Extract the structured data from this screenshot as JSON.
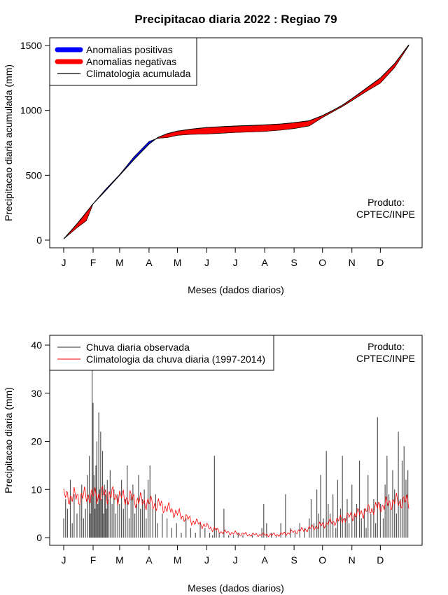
{
  "figure": {
    "title": "Precipitacao diaria 2022 : Regiao 79"
  },
  "colors": {
    "positive_anomaly": "#0000ff",
    "negative_anomaly": "#ff0000",
    "climatology_line": "#000000",
    "observed_bars": "#555555",
    "climatology_daily": "#ff0000"
  },
  "chart_data": [
    {
      "type": "area",
      "id": "accumulated",
      "ylabel": "Precipitacao diaria acumulada (mm)",
      "xlabel": "Meses (dados diarios)",
      "x_tick_labels": [
        "J",
        "F",
        "M",
        "A",
        "M",
        "J",
        "J",
        "A",
        "S",
        "O",
        "N",
        "D"
      ],
      "x_tick_days": [
        1,
        32,
        60,
        91,
        121,
        152,
        182,
        213,
        244,
        274,
        305,
        335
      ],
      "xlim": [
        1,
        365
      ],
      "ylim": [
        0,
        1500
      ],
      "y_ticks": [
        0,
        500,
        1000,
        1500
      ],
      "legend": [
        "Anomalias positivas",
        "Anomalias negativas",
        "Climatologia acumulada"
      ],
      "annotation": [
        "Produto:",
        "CPTEC/INPE"
      ],
      "x_days": [
        1,
        15,
        25,
        32,
        45,
        60,
        75,
        91,
        100,
        110,
        121,
        135,
        152,
        170,
        182,
        200,
        213,
        230,
        244,
        260,
        274,
        285,
        295,
        305,
        320,
        335,
        350,
        365
      ],
      "climatology": [
        9,
        125,
        215,
        280,
        380,
        500,
        620,
        740,
        790,
        820,
        840,
        855,
        868,
        875,
        879,
        884,
        888,
        895,
        905,
        920,
        960,
        1000,
        1040,
        1090,
        1170,
        1250,
        1360,
        1505
      ],
      "observed": [
        9,
        95,
        150,
        280,
        390,
        505,
        640,
        760,
        785,
        790,
        808,
        815,
        818,
        825,
        830,
        834,
        838,
        848,
        860,
        880,
        945,
        990,
        1030,
        1075,
        1145,
        1210,
        1330,
        1500
      ]
    },
    {
      "type": "bar",
      "id": "daily",
      "ylabel": "Precipitacao diaria (mm)",
      "xlabel": "Meses (dados diarios)",
      "x_tick_labels": [
        "J",
        "F",
        "M",
        "A",
        "M",
        "J",
        "J",
        "A",
        "S",
        "O",
        "N",
        "D"
      ],
      "x_tick_days": [
        1,
        32,
        60,
        91,
        121,
        152,
        182,
        213,
        244,
        274,
        305,
        335
      ],
      "xlim": [
        1,
        365
      ],
      "ylim": [
        0,
        40
      ],
      "y_ticks": [
        0,
        10,
        20,
        30,
        40
      ],
      "legend": [
        "Chuva diaria observada",
        "Climatologia da chuva diaria (1997-2014)"
      ],
      "annotation": [
        "Produto:",
        "CPTEC/INPE"
      ],
      "observed_days": [
        1,
        3,
        5,
        8,
        10,
        12,
        15,
        18,
        20,
        22,
        24,
        26,
        28,
        29,
        30,
        31,
        32,
        33,
        34,
        35,
        36,
        37,
        38,
        39,
        40,
        41,
        42,
        43,
        44,
        45,
        46,
        47,
        48,
        50,
        52,
        54,
        56,
        58,
        60,
        62,
        64,
        66,
        68,
        70,
        72,
        74,
        76,
        78,
        80,
        82,
        84,
        86,
        88,
        90,
        92,
        95,
        98,
        100,
        105,
        110,
        115,
        120,
        125,
        130,
        135,
        140,
        145,
        150,
        155,
        158,
        160,
        162,
        165,
        170,
        175,
        180,
        185,
        190,
        200,
        210,
        212,
        215,
        220,
        225,
        230,
        235,
        240,
        245,
        250,
        255,
        260,
        262,
        265,
        268,
        270,
        272,
        275,
        278,
        280,
        282,
        285,
        288,
        290,
        293,
        295,
        298,
        300,
        302,
        305,
        308,
        310,
        313,
        315,
        318,
        320,
        322,
        325,
        328,
        330,
        332,
        335,
        338,
        340,
        342,
        344,
        346,
        348,
        350,
        352,
        354,
        356,
        358,
        360,
        362,
        364
      ],
      "observed_values": [
        4,
        8,
        6,
        12,
        3,
        9,
        5,
        7,
        11,
        4,
        6,
        13,
        17,
        5,
        9,
        35,
        28,
        13,
        6,
        15,
        20,
        7,
        26,
        10,
        22,
        8,
        18,
        5,
        11,
        9,
        6,
        12,
        8,
        14,
        7,
        10,
        5,
        9,
        7,
        12,
        6,
        8,
        15,
        4,
        9,
        11,
        5,
        7,
        13,
        6,
        8,
        10,
        4,
        12,
        15,
        6,
        9,
        3,
        5,
        4,
        2,
        3,
        1,
        4,
        2,
        1,
        3,
        2,
        1,
        0.5,
        17,
        2,
        1,
        6,
        0.5,
        0.5,
        1,
        0.5,
        0.5,
        2,
        7,
        3,
        1,
        0.5,
        3,
        9,
        2,
        1,
        3,
        2,
        4,
        8,
        3,
        10,
        5,
        13,
        4,
        18,
        7,
        5,
        9,
        2,
        12,
        6,
        17,
        4,
        8,
        3,
        11,
        5,
        7,
        16,
        4,
        6,
        2,
        13,
        5,
        8,
        3,
        25,
        7,
        4,
        11,
        17,
        9,
        6,
        14,
        10,
        5,
        22,
        8,
        16,
        19,
        12,
        14
      ]
    }
  ]
}
